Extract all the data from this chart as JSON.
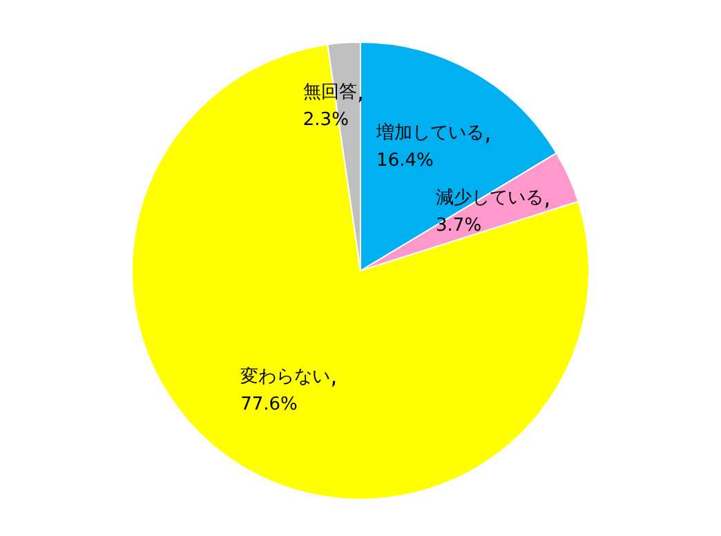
{
  "chart_data": {
    "type": "pie",
    "categories": [
      "増加している",
      "減少している",
      "変わらない",
      "無回答"
    ],
    "values": [
      16.4,
      3.7,
      77.6,
      2.3
    ],
    "colors": [
      "#00b0f0",
      "#ff99cc",
      "#ffff00",
      "#bfbfbf"
    ],
    "value_labels": [
      "16.4%",
      "3.7%",
      "77.6%",
      "2.3%"
    ],
    "legend": false
  }
}
